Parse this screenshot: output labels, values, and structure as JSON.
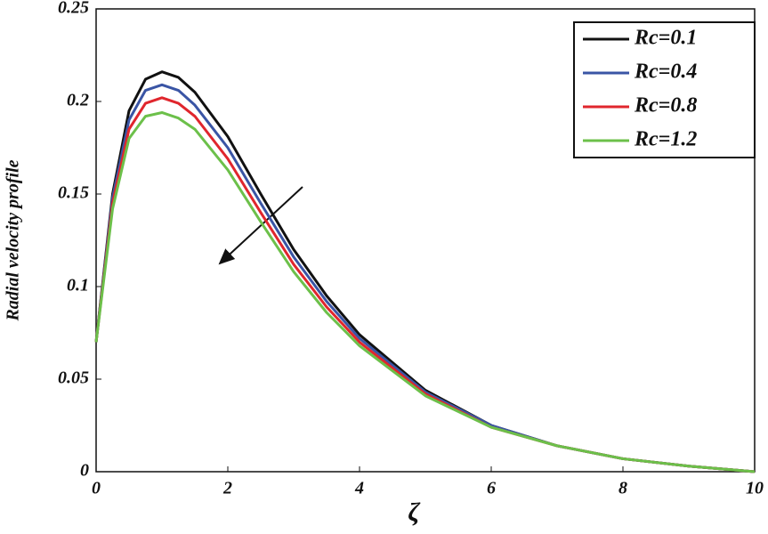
{
  "chart_data": {
    "type": "line",
    "x_label": "ζ",
    "y_label": "Radial velocity profile",
    "x": [
      0,
      0.25,
      0.5,
      0.75,
      1,
      1.25,
      1.5,
      2,
      2.5,
      3,
      3.5,
      4,
      5,
      6,
      7,
      8,
      9,
      10
    ],
    "series": [
      {
        "name": "Rc=0.1",
        "color": "#111111",
        "values": [
          0.07,
          0.15,
          0.195,
          0.212,
          0.216,
          0.213,
          0.205,
          0.181,
          0.15,
          0.12,
          0.095,
          0.074,
          0.044,
          0.025,
          0.014,
          0.007,
          0.003,
          0
        ]
      },
      {
        "name": "Rc=0.4",
        "color": "#3a55a5",
        "values": [
          0.07,
          0.148,
          0.19,
          0.206,
          0.209,
          0.206,
          0.198,
          0.175,
          0.145,
          0.116,
          0.092,
          0.072,
          0.043,
          0.025,
          0.014,
          0.007,
          0.003,
          0
        ]
      },
      {
        "name": "Rc=0.8",
        "color": "#e0262d",
        "values": [
          0.07,
          0.145,
          0.185,
          0.199,
          0.202,
          0.199,
          0.192,
          0.169,
          0.14,
          0.112,
          0.089,
          0.07,
          0.042,
          0.024,
          0.014,
          0.007,
          0.003,
          0
        ]
      },
      {
        "name": "Rc=1.2",
        "color": "#6cc04a",
        "values": [
          0.07,
          0.142,
          0.18,
          0.192,
          0.194,
          0.191,
          0.185,
          0.163,
          0.135,
          0.108,
          0.086,
          0.068,
          0.041,
          0.024,
          0.014,
          0.007,
          0.003,
          0
        ]
      }
    ],
    "xlim": [
      0,
      10
    ],
    "xticks": [
      0,
      2,
      4,
      6,
      8,
      10
    ],
    "ylim": [
      0,
      0.25
    ],
    "yticks": [
      0,
      0.05,
      0.1,
      0.15,
      0.2,
      0.25
    ],
    "legend": "upper-right"
  }
}
